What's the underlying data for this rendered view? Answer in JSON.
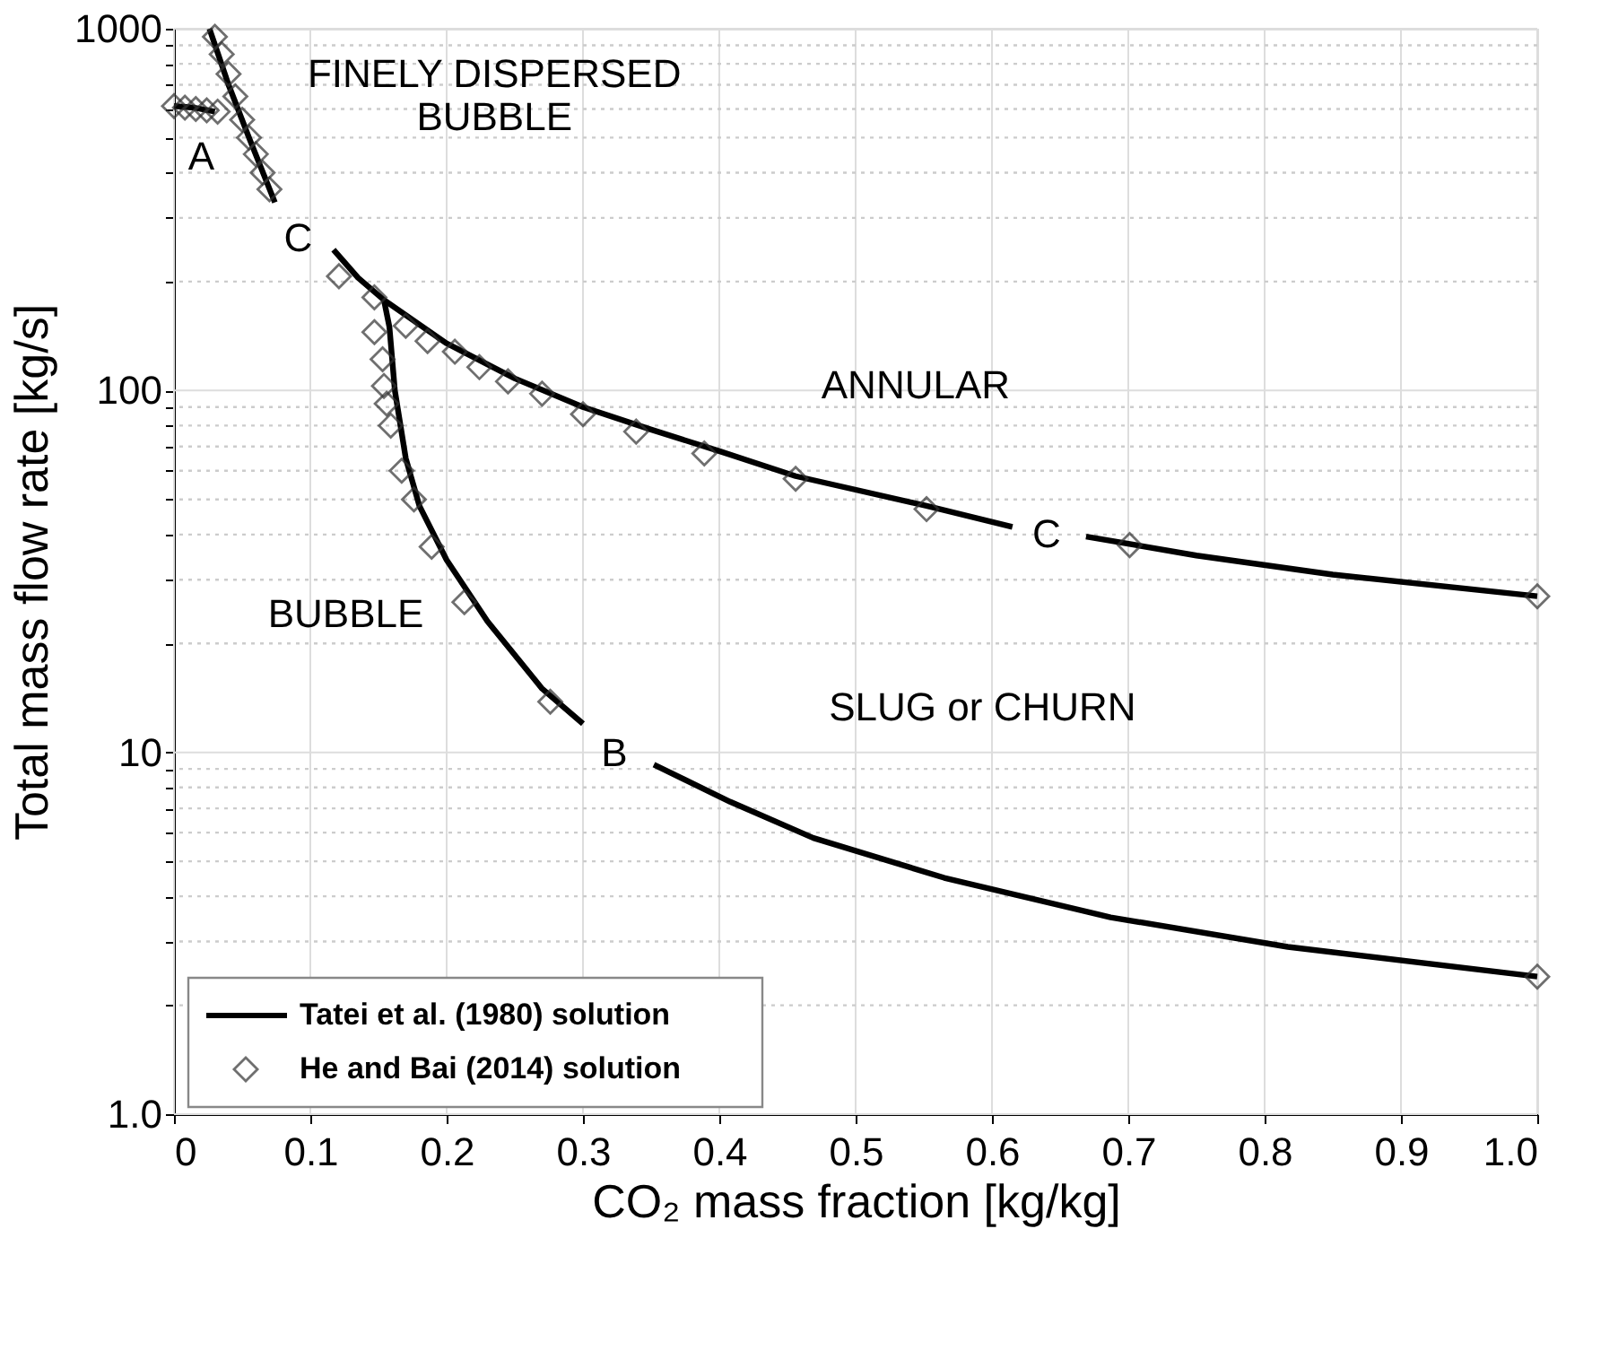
{
  "chart_data": {
    "type": "line",
    "xlabel": "CO₂ mass fraction [kg/kg]",
    "ylabel": "Total mass flow rate [kg/s]",
    "log": "y",
    "grid": true,
    "line_style": "solid",
    "legend": "bottom left",
    "xlim": [
      0,
      1
    ],
    "ylim": [
      1,
      1000
    ],
    "xticks": [
      0,
      0.1,
      0.2,
      0.3,
      0.4,
      0.5,
      0.6,
      0.7,
      0.8,
      0.9,
      {
        "value": 1,
        "label": "1.0"
      }
    ],
    "yticks": [
      {
        "value": 1,
        "label": "1.0"
      },
      {
        "value": 2,
        "label": null
      },
      {
        "value": 3,
        "label": null
      },
      {
        "value": 4,
        "label": null
      },
      {
        "value": 5,
        "label": null
      },
      {
        "value": 6,
        "label": null
      },
      {
        "value": 7,
        "label": null
      },
      {
        "value": 8,
        "label": null
      },
      {
        "value": 9,
        "label": null
      },
      10,
      {
        "value": 20,
        "label": null
      },
      {
        "value": 30,
        "label": null
      },
      {
        "value": 40,
        "label": null
      },
      {
        "value": 50,
        "label": null
      },
      {
        "value": 60,
        "label": null
      },
      {
        "value": 70,
        "label": null
      },
      {
        "value": 80,
        "label": null
      },
      {
        "value": 90,
        "label": null
      },
      100,
      {
        "value": 200,
        "label": null
      },
      {
        "value": 300,
        "label": null
      },
      {
        "value": 400,
        "label": null
      },
      {
        "value": 500,
        "label": null
      },
      {
        "value": 600,
        "label": null
      },
      {
        "value": 700,
        "label": null
      },
      {
        "value": 800,
        "label": null
      },
      {
        "value": 900,
        "label": null
      },
      1000
    ],
    "series": [
      {
        "name": "Tatei et al. (1980) solution",
        "color": "#000000",
        "x": [
          0.026,
          0.04,
          0.055,
          0.074,
          0.09,
          0.117,
          0.135,
          0.154,
          0.2,
          0.25,
          0.3,
          0.35,
          0.4,
          0.456,
          0.552,
          0.615,
          0.64,
          0.669,
          0.75,
          0.85,
          1.0
        ],
        "values": [
          1000,
          700,
          500,
          331,
          null,
          245,
          205,
          178,
          135,
          108,
          90,
          78,
          68,
          58,
          48,
          42,
          null,
          39.5,
          35,
          31,
          27
        ]
      },
      {
        "color": "#000000",
        "x": [
          0.0,
          0.015,
          0.03
        ],
        "values": [
          611,
          605,
          590
        ]
      },
      {
        "color": "#000000",
        "x": [
          0.154,
          0.158,
          0.162,
          0.17,
          0.18,
          0.2,
          0.23,
          0.27,
          0.3,
          0.323,
          0.352,
          0.408,
          0.469,
          0.565,
          0.687,
          0.817,
          1.0
        ],
        "values": [
          178,
          150,
          100,
          65,
          48,
          34,
          23,
          15,
          12,
          null,
          9.25,
          7.3,
          5.8,
          4.5,
          3.5,
          2.9,
          2.4
        ]
      },
      {
        "name": "He and Bai (2014) solution",
        "type": "scatter",
        "marker": "diamond",
        "color": "#333333",
        "x": [
          0.0,
          0.008,
          0.016,
          0.024,
          0.032,
          0.03,
          0.035,
          0.04,
          0.045,
          0.05,
          0.055,
          0.06,
          0.065,
          0.07,
          0.121,
          0.147,
          0.17,
          0.186,
          0.206,
          0.224,
          0.245,
          0.27,
          0.3,
          0.339,
          0.389,
          0.456,
          0.552,
          0.701,
          1.0,
          0.147,
          0.153,
          0.154,
          0.156,
          0.159,
          0.167,
          0.176,
          0.189,
          0.213,
          0.276,
          1.0
        ],
        "values": [
          611,
          605,
          600,
          595,
          590,
          950,
          850,
          750,
          650,
          560,
          500,
          450,
          400,
          360,
          207,
          181,
          151,
          137,
          128,
          116,
          106,
          98,
          86,
          77,
          67,
          57,
          47,
          37.4,
          27,
          145,
          122,
          103,
          92,
          80,
          60,
          50,
          37,
          26,
          13.8,
          2.4
        ]
      }
    ],
    "annotations": [
      "FINELY DISPERSED\nBUBBLE",
      "A",
      "C",
      "ANNULAR",
      "C",
      "BUBBLE",
      "SLUG or CHURN",
      "B"
    ]
  }
}
